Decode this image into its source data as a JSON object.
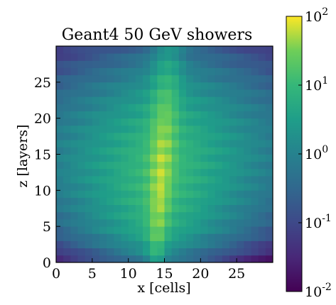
{
  "chart_data": {
    "type": "heatmap",
    "title": "Geant4 50 GeV showers",
    "xlabel": "x [cells]",
    "ylabel": "z [layers]",
    "x_range": [
      0,
      30
    ],
    "y_range": [
      0,
      30
    ],
    "x_ticks": [
      0,
      5,
      10,
      15,
      20,
      25
    ],
    "y_ticks": [
      0,
      5,
      10,
      15,
      20,
      25
    ],
    "grid": false,
    "colormap": "viridis",
    "colorbar": {
      "scale": "log",
      "range": [
        0.01,
        100
      ],
      "ticks": [
        {
          "base": "10",
          "exp": "2",
          "value": 100
        },
        {
          "base": "10",
          "exp": "1",
          "value": 10
        },
        {
          "base": "10",
          "exp": "0",
          "value": 1
        },
        {
          "base": "10",
          "exp": "-1",
          "value": 0.1
        },
        {
          "base": "10",
          "exp": "-2",
          "value": 0.01
        }
      ]
    },
    "cells": {
      "nx": 30,
      "nz": 30,
      "peak_value": 60,
      "core_x": 14.5,
      "core_z_peak": 12,
      "min_value": 0.012
    }
  }
}
